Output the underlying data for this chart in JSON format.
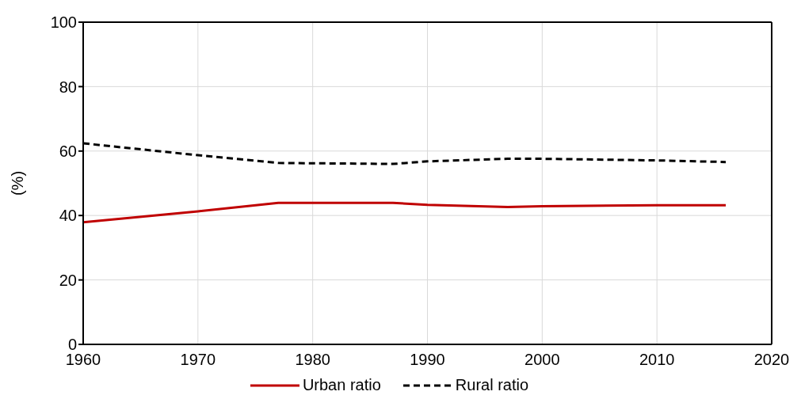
{
  "chart_data": {
    "type": "line",
    "ylabel": "(%)",
    "x": [
      1960,
      1970,
      1977,
      1987,
      1990,
      1997,
      2000,
      2010,
      2016
    ],
    "series": [
      {
        "name": "Urban ratio",
        "color": "#c00000",
        "line_style": "solid",
        "values": [
          37.9,
          41.3,
          43.9,
          43.9,
          43.3,
          42.6,
          42.9,
          43.2,
          43.2
        ]
      },
      {
        "name": "Rural ratio",
        "color": "#000000",
        "line_style": "dashed",
        "values": [
          62.4,
          58.7,
          56.3,
          56,
          56.8,
          57.6,
          57.6,
          57.1,
          56.6
        ]
      }
    ],
    "xlim": [
      1960,
      2020
    ],
    "xticks": [
      1960,
      1970,
      1980,
      1990,
      2000,
      2010,
      2020
    ],
    "ylim": [
      0,
      100
    ],
    "yticks": [
      0,
      20,
      40,
      60,
      80,
      100
    ],
    "grid": true,
    "legend": "bottom",
    "marker": "none"
  }
}
